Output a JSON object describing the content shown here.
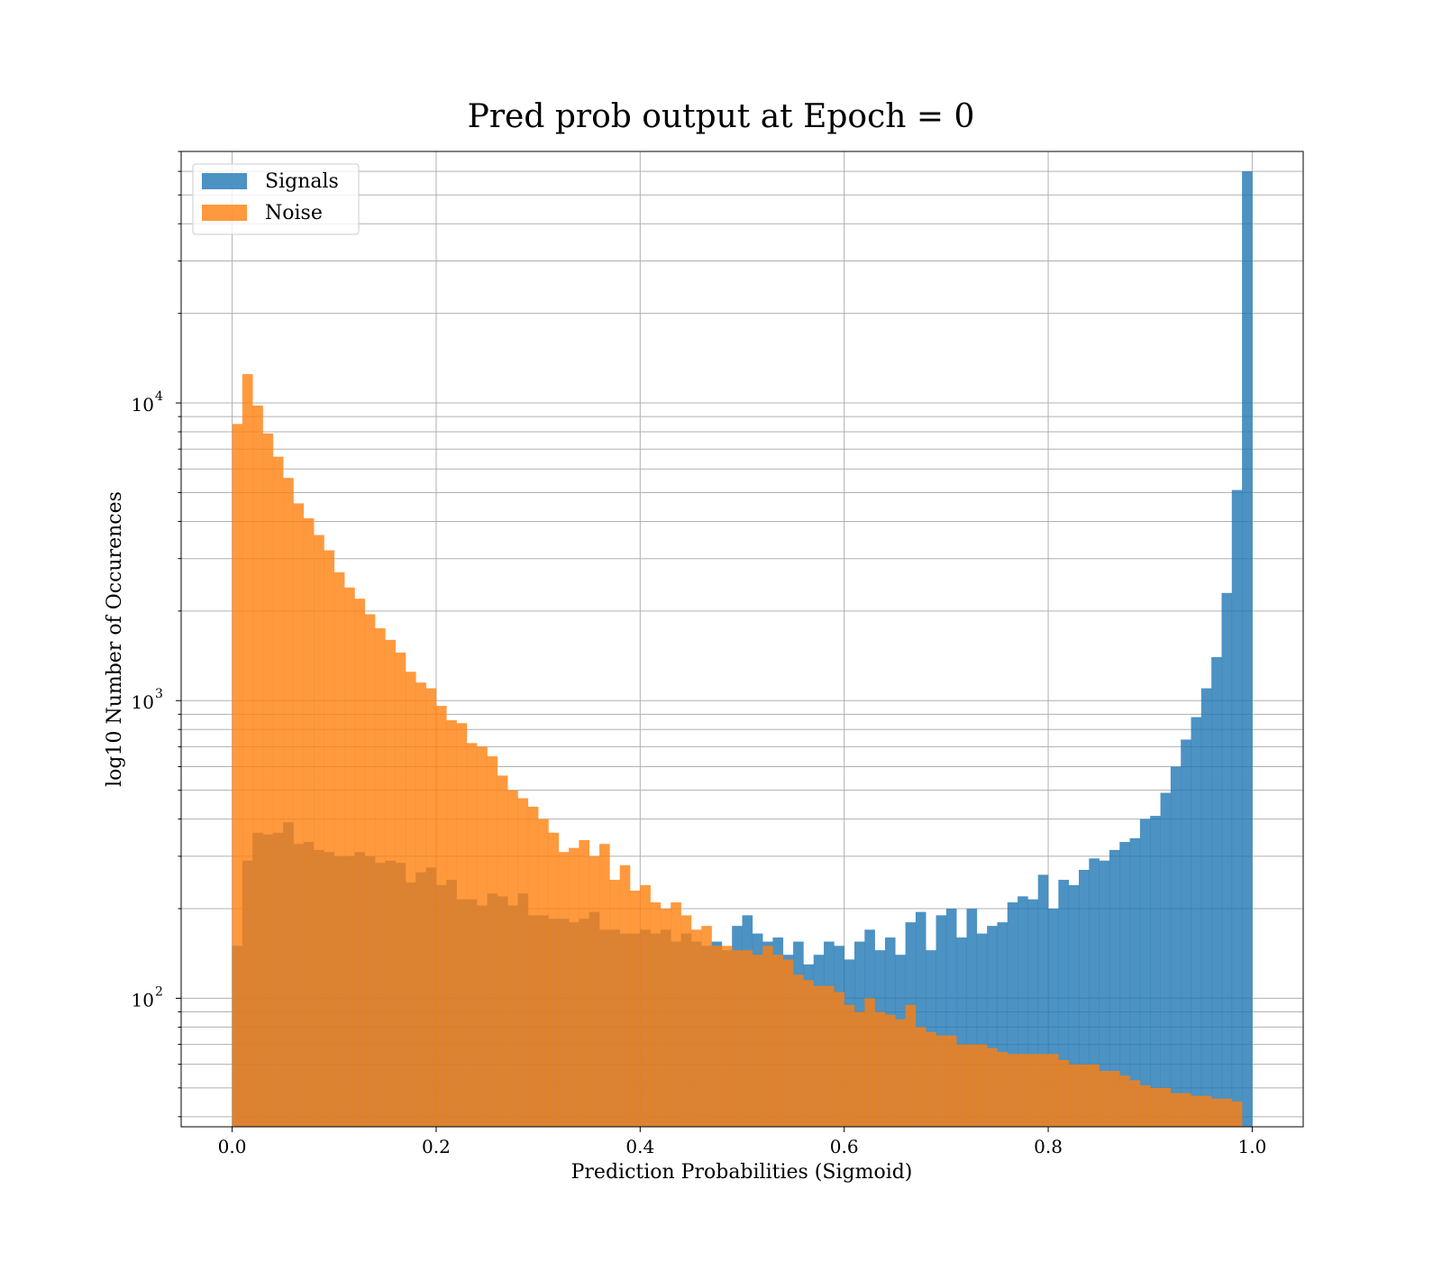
{
  "chart_data": {
    "type": "bar",
    "title": "Pred prob output at Epoch = 0",
    "xlabel": "Prediction Probabilities (Sigmoid)",
    "ylabel": "log10 Number of Occurences",
    "xlim": [
      -0.05,
      1.05
    ],
    "ylim": [
      37,
      70000
    ],
    "yscale": "log",
    "grid": true,
    "legend_position": "top-left",
    "x_ticks": [
      "0.0",
      "0.2",
      "0.4",
      "0.6",
      "0.8",
      "1.0"
    ],
    "y_tick_values": [
      100,
      1000,
      10000
    ],
    "y_tick_mantissa": "10",
    "y_tick_exponents": [
      "2",
      "3",
      "4"
    ],
    "bin_edges": {
      "start": 0.0,
      "width": 0.01,
      "count": 100
    },
    "colors": {
      "Signals": "#1f77b4",
      "Noise": "#ff7f0e",
      "overlap": "#e0833a"
    },
    "series": [
      {
        "name": "Signals",
        "opacity": 0.8,
        "values": [
          150,
          290,
          360,
          355,
          360,
          390,
          330,
          335,
          315,
          310,
          300,
          300,
          310,
          300,
          285,
          290,
          285,
          245,
          265,
          275,
          240,
          250,
          215,
          215,
          205,
          225,
          220,
          205,
          225,
          190,
          190,
          185,
          185,
          180,
          185,
          195,
          170,
          170,
          165,
          165,
          170,
          165,
          170,
          155,
          165,
          155,
          150,
          155,
          145,
          175,
          190,
          165,
          155,
          160,
          140,
          155,
          130,
          140,
          155,
          150,
          135,
          155,
          170,
          145,
          160,
          140,
          180,
          195,
          145,
          190,
          200,
          160,
          200,
          165,
          175,
          180,
          210,
          220,
          215,
          260,
          200,
          250,
          240,
          270,
          295,
          290,
          315,
          335,
          345,
          400,
          410,
          490,
          600,
          740,
          880,
          1100,
          1400,
          2300,
          5100,
          60000
        ]
      },
      {
        "name": "Noise",
        "values": [
          8500,
          12500,
          9800,
          7900,
          6600,
          5600,
          4600,
          4100,
          3600,
          3200,
          2700,
          2400,
          2200,
          1950,
          1750,
          1600,
          1450,
          1250,
          1150,
          1100,
          960,
          860,
          840,
          720,
          700,
          650,
          560,
          500,
          470,
          440,
          400,
          360,
          310,
          320,
          340,
          300,
          330,
          250,
          280,
          230,
          240,
          210,
          200,
          210,
          190,
          170,
          175,
          150,
          150,
          145,
          145,
          140,
          150,
          140,
          135,
          120,
          115,
          110,
          110,
          105,
          95,
          90,
          100,
          90,
          88,
          85,
          95,
          80,
          77,
          75,
          75,
          70,
          70,
          70,
          68,
          66,
          65,
          65,
          65,
          65,
          65,
          62,
          60,
          60,
          60,
          57,
          57,
          55,
          53,
          51,
          50,
          50,
          48,
          48,
          47,
          47,
          46,
          46,
          45,
          0
        ]
      }
    ]
  }
}
